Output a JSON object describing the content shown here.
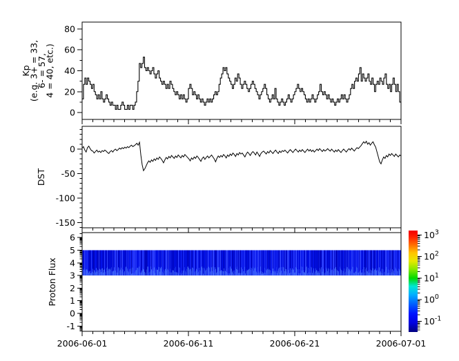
{
  "figure": {
    "bg": "#ffffff",
    "axis_color": "#000000",
    "plot_line_color": "#000000"
  },
  "x_axis": {
    "tick_labels": [
      "2006-06-01",
      "2006-06-11",
      "2006-06-21",
      "2006-07-01"
    ],
    "tick_positions_days": [
      0,
      10,
      20,
      30
    ],
    "minor_interval_days": 1,
    "span_days": 30
  },
  "chart_data": [
    {
      "type": "line",
      "style": "steps",
      "ylabel_lines": [
        "Kp",
        "(e.g. 3+ = 33,",
        "6- = 57,",
        "4 = 40, etc.)"
      ],
      "yticks": [
        0,
        20,
        40,
        60,
        80
      ],
      "y_minor_interval": 10,
      "ylim": [
        -6.6,
        86.6
      ],
      "x_start": "2006-06-01",
      "x_end": "2006-07-01",
      "sample_interval_hours": 3,
      "values": [
        13,
        27,
        33,
        27,
        33,
        30,
        27,
        23,
        27,
        20,
        17,
        13,
        17,
        13,
        20,
        13,
        10,
        13,
        17,
        13,
        10,
        7,
        10,
        7,
        7,
        3,
        7,
        3,
        3,
        7,
        10,
        7,
        3,
        3,
        7,
        3,
        7,
        7,
        3,
        7,
        10,
        20,
        30,
        47,
        43,
        47,
        53,
        43,
        40,
        43,
        40,
        37,
        40,
        43,
        37,
        33,
        37,
        40,
        33,
        30,
        27,
        30,
        27,
        23,
        27,
        23,
        30,
        27,
        23,
        20,
        17,
        20,
        17,
        13,
        17,
        13,
        17,
        13,
        10,
        13,
        23,
        27,
        23,
        17,
        20,
        17,
        13,
        17,
        13,
        10,
        13,
        10,
        7,
        10,
        13,
        10,
        13,
        10,
        13,
        17,
        20,
        17,
        20,
        27,
        33,
        37,
        43,
        40,
        43,
        37,
        33,
        30,
        27,
        23,
        27,
        33,
        30,
        37,
        33,
        27,
        23,
        27,
        30,
        27,
        23,
        20,
        23,
        27,
        30,
        27,
        23,
        20,
        17,
        13,
        17,
        20,
        23,
        27,
        23,
        17,
        13,
        10,
        13,
        17,
        13,
        23,
        13,
        10,
        7,
        10,
        13,
        10,
        7,
        10,
        13,
        17,
        13,
        10,
        13,
        17,
        20,
        23,
        27,
        23,
        20,
        23,
        20,
        17,
        13,
        10,
        13,
        10,
        13,
        17,
        13,
        10,
        13,
        17,
        20,
        27,
        20,
        17,
        20,
        17,
        13,
        17,
        13,
        10,
        13,
        10,
        7,
        10,
        13,
        10,
        13,
        17,
        13,
        17,
        13,
        10,
        13,
        17,
        23,
        27,
        23,
        30,
        33,
        30,
        37,
        43,
        30,
        37,
        33,
        30,
        33,
        37,
        30,
        27,
        33,
        27,
        20,
        27,
        30,
        27,
        33,
        30,
        27,
        33,
        37,
        27,
        23,
        27,
        20,
        27,
        33,
        27,
        20,
        27,
        20,
        10
      ]
    },
    {
      "type": "line",
      "style": "line",
      "ylabel_lines": [
        "DST"
      ],
      "yticks": [
        0,
        -50,
        -100,
        -150
      ],
      "y_minor_interval": 10,
      "ylim": [
        -160.5,
        46.5
      ],
      "x_start": "2006-06-01",
      "x_end": "2006-07-01",
      "sample_interval_hours": 3,
      "values": [
        2,
        5,
        -2,
        -6,
        3,
        6,
        1,
        -3,
        -4,
        -8,
        -5,
        -2,
        -6,
        -4,
        -7,
        -3,
        -5,
        -2,
        -4,
        -7,
        -9,
        -5,
        -3,
        -6,
        -2,
        0,
        -3,
        -1,
        2,
        0,
        3,
        1,
        4,
        2,
        5,
        3,
        6,
        8,
        5,
        7,
        9,
        12,
        8,
        14,
        -12,
        -32,
        -44,
        -40,
        -34,
        -28,
        -24,
        -27,
        -22,
        -25,
        -20,
        -23,
        -18,
        -21,
        -16,
        -19,
        -23,
        -28,
        -22,
        -17,
        -20,
        -15,
        -18,
        -13,
        -16,
        -19,
        -14,
        -17,
        -12,
        -15,
        -18,
        -13,
        -16,
        -11,
        -14,
        -17,
        -20,
        -24,
        -18,
        -21,
        -16,
        -19,
        -14,
        -17,
        -21,
        -25,
        -19,
        -16,
        -21,
        -17,
        -14,
        -18,
        -15,
        -12,
        -16,
        -20,
        -26,
        -19,
        -14,
        -17,
        -13,
        -16,
        -11,
        -14,
        -18,
        -12,
        -15,
        -10,
        -13,
        -8,
        -11,
        -15,
        -9,
        -12,
        -7,
        -10,
        -8,
        -12,
        -16,
        -10,
        -6,
        -9,
        -13,
        -8,
        -5,
        -8,
        -12,
        -6,
        -10,
        -15,
        -9,
        -6,
        -4,
        -7,
        -10,
        -5,
        -8,
        -3,
        -6,
        -9,
        -5,
        -2,
        -6,
        -9,
        -4,
        -7,
        -3,
        -5,
        -2,
        -5,
        -8,
        -4,
        -1,
        -4,
        -7,
        -3,
        0,
        -3,
        -6,
        -2,
        -5,
        -1,
        -4,
        -7,
        -3,
        0,
        -4,
        -1,
        -5,
        -2,
        -6,
        -3,
        0,
        -3,
        1,
        -2,
        -5,
        -1,
        -4,
        -2,
        1,
        -2,
        -4,
        0,
        -3,
        -6,
        -2,
        -5,
        -1,
        -4,
        -7,
        -3,
        0,
        -3,
        -6,
        -2,
        1,
        -2,
        2,
        -1,
        -4,
        0,
        3,
        1,
        4,
        7,
        11,
        15,
        12,
        16,
        10,
        13,
        8,
        12,
        15,
        9,
        4,
        -6,
        -16,
        -26,
        -30,
        -22,
        -16,
        -19,
        -13,
        -16,
        -10,
        -13,
        -9,
        -12,
        -15,
        -10,
        -13,
        -16,
        -12,
        -14
      ]
    },
    {
      "type": "heatmap",
      "ylabel_lines": [
        "Proton Flux"
      ],
      "yticks": [
        -1,
        0,
        1,
        2,
        3,
        4,
        5,
        6
      ],
      "y_minor_style": "log-decade",
      "ylim": [
        -1.42,
        6.39
      ],
      "band": {
        "y_low": 3,
        "y_high": 5,
        "dark_color": "#0004b8",
        "base_color": "#0110e8",
        "bright_color": "#3548ff",
        "fleck_color": "#4d7dff"
      },
      "colorbar": {
        "scale": "log10",
        "tick_base": "10",
        "tick_exponents": [
          3,
          2,
          1,
          0,
          -1
        ],
        "lim_exponents": [
          -1.5,
          3.2
        ],
        "colormap": "jet",
        "colormap_stops": [
          [
            0,
            "#00007f"
          ],
          [
            0.09,
            "#0000e0"
          ],
          [
            0.18,
            "#0013ff"
          ],
          [
            0.28,
            "#0063ff"
          ],
          [
            0.37,
            "#00b0ff"
          ],
          [
            0.45,
            "#00e6d5"
          ],
          [
            0.53,
            "#00d900"
          ],
          [
            0.62,
            "#8ae800"
          ],
          [
            0.7,
            "#e8e800"
          ],
          [
            0.78,
            "#ffc400"
          ],
          [
            0.86,
            "#ff6d00"
          ],
          [
            0.94,
            "#ff1e00"
          ],
          [
            1,
            "#f00000"
          ]
        ]
      }
    }
  ]
}
